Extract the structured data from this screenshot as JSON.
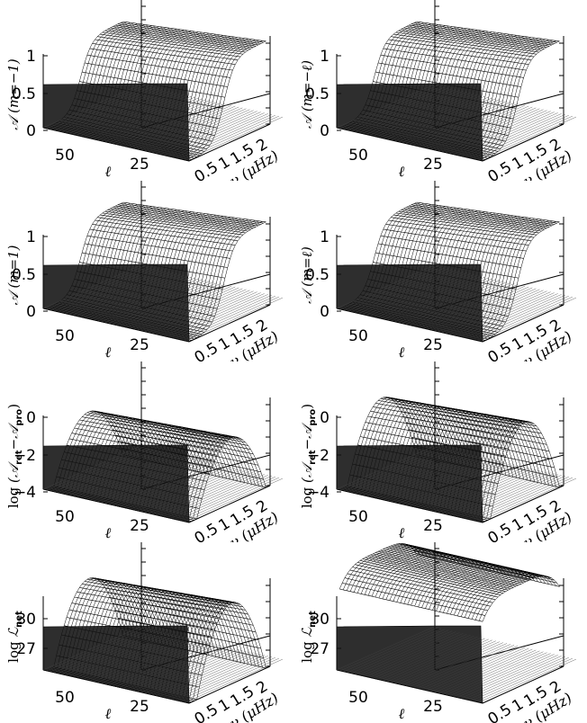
{
  "chart_data": [
    {
      "type": "surface3d",
      "ylabel_main": "𝒜",
      "ylabel_paren": "(m=−1)",
      "zticks": [
        "0",
        "0.5",
        "1"
      ],
      "zlim": [
        0,
        1.25
      ],
      "xaxis_ticks": [
        "50",
        "25"
      ],
      "xaxis_label": "ℓ",
      "nu_ticks": [
        "0.5",
        "1",
        "1.5",
        "2"
      ],
      "nu_label": "ν (μHz)",
      "surface": {
        "kind": "sigmoid-rise",
        "peak": 1.0
      }
    },
    {
      "type": "surface3d",
      "ylabel_main": "𝒜",
      "ylabel_paren": "(m=−ℓ)",
      "zticks": [
        "0",
        "0.5",
        "1"
      ],
      "zlim": [
        0,
        1.25
      ],
      "xaxis_ticks": [
        "50",
        "25"
      ],
      "xaxis_label": "ℓ",
      "nu_ticks": [
        "0.5",
        "1",
        "1.5",
        "2"
      ],
      "nu_label": "ν (μHz)",
      "surface": {
        "kind": "sigmoid-rise",
        "peak": 1.0
      }
    },
    {
      "type": "surface3d",
      "ylabel_main": "𝒜",
      "ylabel_paren": "(m=1)",
      "zticks": [
        "0",
        "0.5",
        "1"
      ],
      "zlim": [
        0,
        1.25
      ],
      "xaxis_ticks": [
        "50",
        "25"
      ],
      "xaxis_label": "ℓ",
      "nu_ticks": [
        "0.5",
        "1",
        "1.5",
        "2"
      ],
      "nu_label": "ν (μHz)",
      "surface": {
        "kind": "sigmoid-rise",
        "peak": 1.0
      }
    },
    {
      "type": "surface3d",
      "ylabel_main": "𝒜",
      "ylabel_paren": "(m=ℓ)",
      "zticks": [
        "0",
        "0.5",
        "1"
      ],
      "zlim": [
        0,
        1.25
      ],
      "xaxis_ticks": [
        "50",
        "25"
      ],
      "xaxis_label": "ℓ",
      "nu_ticks": [
        "0.5",
        "1",
        "1.5",
        "2"
      ],
      "nu_label": "ν (μHz)",
      "surface": {
        "kind": "sigmoid-rise",
        "peak": 1.0
      }
    },
    {
      "type": "surface3d",
      "ylabel_prefix": "log",
      "ylabel_main": "(𝒜",
      "ylabel_sub1": "ret",
      "ylabel_mid": "−𝒜",
      "ylabel_sub2": "pro",
      "ylabel_end": ")",
      "zticks": [
        "−4",
        "−2",
        "0"
      ],
      "zlim": [
        -4,
        1.5
      ],
      "xaxis_ticks": [
        "50",
        "25"
      ],
      "xaxis_label": "ℓ",
      "nu_ticks": [
        "0.5",
        "1",
        "1.5",
        "2"
      ],
      "nu_label": "ν (μHz)",
      "surface": {
        "kind": "dome",
        "peak": -0.8
      }
    },
    {
      "type": "surface3d",
      "ylabel_prefix": "log",
      "ylabel_main": "(𝒜",
      "ylabel_sub1": "ret",
      "ylabel_mid": "−𝒜",
      "ylabel_sub2": "pro",
      "ylabel_end": ")",
      "zticks": [
        "−4",
        "−2",
        "0"
      ],
      "zlim": [
        -4,
        1.5
      ],
      "xaxis_ticks": [
        "50",
        "25"
      ],
      "xaxis_label": "ℓ",
      "nu_ticks": [
        "0.5",
        "1",
        "1.5",
        "2"
      ],
      "nu_label": "ν (μHz)",
      "surface": {
        "kind": "dome",
        "peak": 0.5
      }
    },
    {
      "type": "surface3d",
      "ylabel_prefix": "log",
      "ylabel_main": "ℒ",
      "ylabel_sub1": "net",
      "zticks": [
        "27",
        "30"
      ],
      "zlim": [
        24,
        34
      ],
      "xaxis_ticks": [
        "50",
        "25"
      ],
      "xaxis_label": "ℓ",
      "nu_ticks": [
        "0.5",
        "1",
        "1.5",
        "2"
      ],
      "nu_label": "ν (μHz)",
      "surface": {
        "kind": "dome",
        "peak": 30.8
      }
    },
    {
      "type": "surface3d",
      "ylabel_prefix": "log",
      "ylabel_main": "ℒ",
      "ylabel_sub1": "net",
      "zticks": [
        "27",
        "30"
      ],
      "zlim": [
        24,
        34
      ],
      "xaxis_ticks": [
        "50",
        "25"
      ],
      "xaxis_label": "ℓ",
      "nu_ticks": [
        "0.5",
        "1",
        "1.5",
        "2"
      ],
      "nu_label": "ν (μHz)",
      "surface": {
        "kind": "wide-dome",
        "peak": 31.8
      }
    }
  ]
}
